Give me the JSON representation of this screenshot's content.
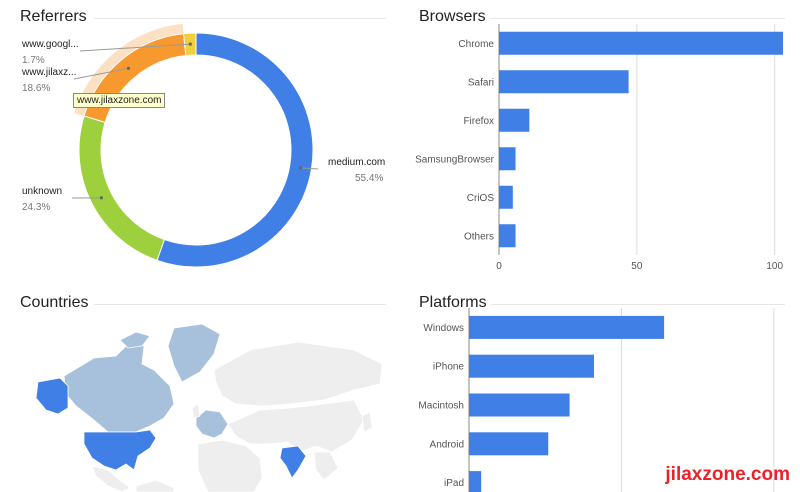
{
  "panels": {
    "referrers": {
      "title": "Referrers"
    },
    "browsers": {
      "title": "Browsers"
    },
    "countries": {
      "title": "Countries"
    },
    "platforms": {
      "title": "Platforms"
    }
  },
  "tooltip": {
    "text": "www.jilaxzone.com"
  },
  "watermark": {
    "text": "jilaxzone.com"
  },
  "colors": {
    "bar": "#3f7fe6",
    "medium": "#3f7fe6",
    "unknown": "#9dd03c",
    "jilaxzone": "#f7992e",
    "google": "#f2cf3a",
    "highlight": "#fbe0c3",
    "map_land": "#eeeeee",
    "map_mid": "#a7c1dd",
    "map_high": "#3f7fe6"
  },
  "chart_data": [
    {
      "type": "pie",
      "name": "referrers",
      "slices": [
        {
          "label": "medium.com",
          "value": 55.4,
          "pct_label": "55.4%",
          "color_key": "medium"
        },
        {
          "label": "unknown",
          "value": 24.3,
          "pct_label": "24.3%",
          "color_key": "unknown"
        },
        {
          "label": "www.jilaxz...",
          "value": 18.6,
          "pct_label": "18.6%",
          "color_key": "jilaxzone"
        },
        {
          "label": "www.googl...",
          "value": 1.7,
          "pct_label": "1.7%",
          "color_key": "google"
        }
      ]
    },
    {
      "type": "bar",
      "name": "browsers",
      "orientation": "horizontal",
      "categories": [
        "Chrome",
        "Safari",
        "Firefox",
        "SamsungBrowser",
        "CriOS",
        "Others"
      ],
      "values": [
        103,
        47,
        11,
        6,
        5,
        6
      ],
      "xlim": [
        0,
        103
      ],
      "xticks": [
        0,
        50,
        100
      ],
      "grid": true
    },
    {
      "type": "bar",
      "name": "platforms",
      "orientation": "horizontal",
      "categories": [
        "Windows",
        "iPhone",
        "Macintosh",
        "Android",
        "iPad"
      ],
      "values": [
        64,
        41,
        33,
        26,
        4
      ],
      "grid": true
    }
  ],
  "map_data": {
    "high": [
      "United States",
      "Alaska",
      "India"
    ],
    "mid": [
      "Canada",
      "Greenland",
      "Europe"
    ]
  }
}
